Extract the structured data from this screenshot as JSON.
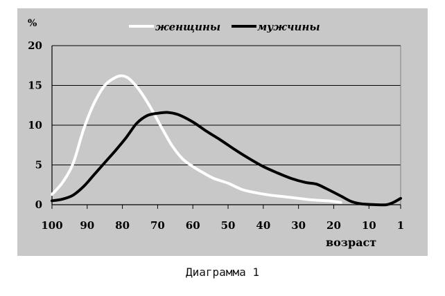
{
  "chart_data": {
    "type": "line",
    "ylabel": "%",
    "xlabel": "возраст",
    "x_axis_reversed": true,
    "xlim": [
      100,
      1
    ],
    "ylim": [
      0,
      20
    ],
    "y_ticks": [
      "0",
      "5",
      "10",
      "15",
      "20"
    ],
    "x_ticks": [
      "100",
      "90",
      "80",
      "70",
      "60",
      "50",
      "40",
      "30",
      "20",
      "10",
      "1"
    ],
    "legend_position": "top",
    "grid": "horizontal",
    "series": [
      {
        "name": "женщины",
        "color": "#ffffff",
        "points": [
          [
            100,
            1.3
          ],
          [
            97,
            2.8
          ],
          [
            94,
            5.2
          ],
          [
            91,
            9.5
          ],
          [
            88,
            12.8
          ],
          [
            85,
            15.0
          ],
          [
            82,
            16.0
          ],
          [
            80,
            16.2
          ],
          [
            78,
            15.8
          ],
          [
            75,
            14.3
          ],
          [
            72,
            12.2
          ],
          [
            69,
            9.8
          ],
          [
            66,
            7.5
          ],
          [
            63,
            5.8
          ],
          [
            60,
            4.8
          ],
          [
            57,
            4.0
          ],
          [
            54,
            3.3
          ],
          [
            50,
            2.7
          ],
          [
            46,
            1.9
          ],
          [
            42,
            1.5
          ],
          [
            38,
            1.2
          ],
          [
            34,
            1.0
          ],
          [
            30,
            0.8
          ],
          [
            26,
            0.6
          ],
          [
            22,
            0.5
          ],
          [
            18,
            0.3
          ]
        ]
      },
      {
        "name": "мужчины",
        "color": "#000000",
        "points": [
          [
            100,
            0.5
          ],
          [
            97,
            0.7
          ],
          [
            94,
            1.2
          ],
          [
            91,
            2.3
          ],
          [
            88,
            3.8
          ],
          [
            85,
            5.3
          ],
          [
            82,
            6.8
          ],
          [
            79,
            8.4
          ],
          [
            76,
            10.2
          ],
          [
            73,
            11.2
          ],
          [
            70,
            11.5
          ],
          [
            67,
            11.6
          ],
          [
            64,
            11.3
          ],
          [
            60,
            10.4
          ],
          [
            56,
            9.2
          ],
          [
            52,
            8.1
          ],
          [
            48,
            6.9
          ],
          [
            44,
            5.8
          ],
          [
            40,
            4.8
          ],
          [
            36,
            4.0
          ],
          [
            32,
            3.3
          ],
          [
            28,
            2.8
          ],
          [
            25,
            2.6
          ],
          [
            22,
            2.0
          ],
          [
            18,
            1.1
          ],
          [
            15,
            0.4
          ],
          [
            12,
            0.1
          ],
          [
            8,
            0.0
          ],
          [
            5,
            0.0
          ],
          [
            3,
            0.3
          ],
          [
            1,
            0.8
          ]
        ]
      }
    ]
  },
  "caption": "Диаграмма 1"
}
